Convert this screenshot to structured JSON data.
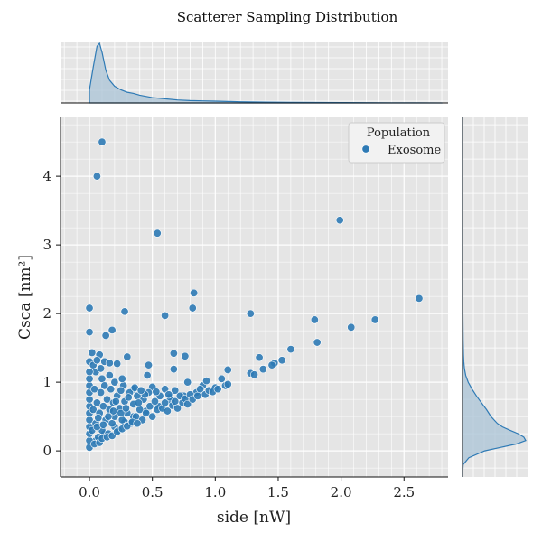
{
  "chart_data": {
    "type": "scatter",
    "title": "Scatterer Sampling Distribution",
    "xlabel": "side [nW]",
    "ylabel": "Csca [nm²]",
    "xlim": [
      -0.23,
      2.85
    ],
    "ylim": [
      -0.38,
      4.87
    ],
    "x_ticks": [
      0.0,
      0.5,
      1.0,
      1.5,
      2.0,
      2.5
    ],
    "x_tick_labels": [
      "0.0",
      "0.5",
      "1.0",
      "1.5",
      "2.0",
      "2.5"
    ],
    "y_ticks": [
      0,
      1,
      2,
      3,
      4
    ],
    "y_tick_labels": [
      "0",
      "1",
      "2",
      "3",
      "4"
    ],
    "grid": true,
    "legend": {
      "title": "Population",
      "placement": "top-right",
      "entries": [
        "Exosome"
      ]
    },
    "colors": {
      "series": "#2e7ab5",
      "background": "#e5e5e5",
      "grid": "#ffffff",
      "kde_fill": "#a9c3d6"
    },
    "series": [
      {
        "name": "Exosome",
        "points": [
          [
            0.1,
            4.5
          ],
          [
            0.06,
            4.0
          ],
          [
            0.54,
            3.17
          ],
          [
            1.99,
            3.36
          ],
          [
            0.83,
            2.3
          ],
          [
            0.0,
            2.08
          ],
          [
            0.28,
            2.03
          ],
          [
            0.6,
            1.97
          ],
          [
            0.82,
            2.08
          ],
          [
            1.28,
            2.0
          ],
          [
            1.79,
            1.91
          ],
          [
            2.62,
            2.22
          ],
          [
            2.27,
            1.91
          ],
          [
            2.08,
            1.8
          ],
          [
            1.81,
            1.58
          ],
          [
            1.6,
            1.48
          ],
          [
            0.0,
            1.73
          ],
          [
            0.13,
            1.68
          ],
          [
            0.18,
            1.76
          ],
          [
            0.02,
            1.43
          ],
          [
            0.08,
            1.4
          ],
          [
            0.12,
            1.3
          ],
          [
            0.16,
            1.28
          ],
          [
            0.22,
            1.27
          ],
          [
            0.3,
            1.37
          ],
          [
            0.47,
            1.25
          ],
          [
            0.67,
            1.42
          ],
          [
            0.76,
            1.38
          ],
          [
            1.35,
            1.36
          ],
          [
            1.53,
            1.32
          ],
          [
            1.47,
            1.28
          ],
          [
            1.45,
            1.25
          ],
          [
            1.38,
            1.19
          ],
          [
            1.28,
            1.13
          ],
          [
            1.31,
            1.11
          ],
          [
            1.1,
            1.18
          ],
          [
            0.67,
            1.19
          ],
          [
            0.46,
            1.1
          ],
          [
            0.0,
            1.3
          ],
          [
            0.03,
            1.25
          ],
          [
            0.05,
            1.15
          ],
          [
            0.1,
            1.05
          ],
          [
            0.2,
            1.0
          ],
          [
            0.27,
            0.95
          ],
          [
            0.35,
            0.9
          ],
          [
            0.5,
            0.93
          ],
          [
            0.6,
            0.9
          ],
          [
            0.68,
            0.88
          ],
          [
            0.78,
            1.0
          ],
          [
            0.9,
            0.95
          ],
          [
            1.05,
            1.05
          ],
          [
            0.93,
            1.02
          ],
          [
            1.0,
            0.92
          ],
          [
            1.08,
            0.95
          ],
          [
            1.1,
            0.97
          ],
          [
            0.85,
            0.85
          ],
          [
            0.75,
            0.8
          ],
          [
            0.65,
            0.72
          ],
          [
            0.55,
            0.65
          ],
          [
            0.45,
            0.58
          ],
          [
            0.35,
            0.5
          ],
          [
            0.28,
            0.42
          ],
          [
            0.2,
            0.35
          ],
          [
            0.12,
            0.25
          ],
          [
            0.05,
            0.15
          ],
          [
            0.0,
            0.05
          ],
          [
            0.0,
            0.15
          ],
          [
            0.0,
            0.25
          ],
          [
            0.0,
            0.35
          ],
          [
            0.0,
            0.45
          ],
          [
            0.0,
            0.55
          ],
          [
            0.0,
            0.65
          ],
          [
            0.0,
            0.75
          ],
          [
            0.0,
            0.85
          ],
          [
            0.0,
            0.95
          ],
          [
            0.0,
            1.05
          ],
          [
            0.0,
            1.15
          ],
          [
            0.02,
            0.3
          ],
          [
            0.03,
            0.6
          ],
          [
            0.04,
            0.9
          ],
          [
            0.05,
            0.4
          ],
          [
            0.06,
            0.7
          ],
          [
            0.07,
            0.2
          ],
          [
            0.08,
            0.55
          ],
          [
            0.09,
            0.85
          ],
          [
            0.1,
            0.3
          ],
          [
            0.11,
            0.65
          ],
          [
            0.12,
            0.95
          ],
          [
            0.13,
            0.45
          ],
          [
            0.14,
            0.75
          ],
          [
            0.15,
            0.25
          ],
          [
            0.16,
            0.6
          ],
          [
            0.17,
            0.9
          ],
          [
            0.18,
            0.4
          ],
          [
            0.19,
            0.7
          ],
          [
            0.2,
            0.5
          ],
          [
            0.22,
            0.8
          ],
          [
            0.23,
            0.3
          ],
          [
            0.24,
            0.62
          ],
          [
            0.25,
            0.88
          ],
          [
            0.26,
            0.45
          ],
          [
            0.28,
            0.72
          ],
          [
            0.3,
            0.55
          ],
          [
            0.32,
            0.85
          ],
          [
            0.33,
            0.4
          ],
          [
            0.35,
            0.68
          ],
          [
            0.37,
            0.5
          ],
          [
            0.38,
            0.8
          ],
          [
            0.4,
            0.6
          ],
          [
            0.42,
            0.45
          ],
          [
            0.43,
            0.75
          ],
          [
            0.45,
            0.55
          ],
          [
            0.47,
            0.85
          ],
          [
            0.48,
            0.65
          ],
          [
            0.5,
            0.5
          ],
          [
            0.52,
            0.72
          ],
          [
            0.54,
            0.6
          ],
          [
            0.56,
            0.8
          ],
          [
            0.58,
            0.62
          ],
          [
            0.6,
            0.7
          ],
          [
            0.62,
            0.58
          ],
          [
            0.64,
            0.78
          ],
          [
            0.66,
            0.66
          ],
          [
            0.68,
            0.72
          ],
          [
            0.7,
            0.62
          ],
          [
            0.72,
            0.8
          ],
          [
            0.74,
            0.7
          ],
          [
            0.76,
            0.76
          ],
          [
            0.78,
            0.68
          ],
          [
            0.8,
            0.82
          ],
          [
            0.82,
            0.75
          ],
          [
            0.86,
            0.8
          ],
          [
            0.88,
            0.9
          ],
          [
            0.92,
            0.82
          ],
          [
            0.95,
            0.88
          ],
          [
            0.98,
            0.86
          ],
          [
            1.02,
            0.9
          ],
          [
            0.04,
            0.1
          ],
          [
            0.06,
            0.35
          ],
          [
            0.08,
            0.12
          ],
          [
            0.1,
            0.18
          ],
          [
            0.14,
            0.2
          ],
          [
            0.18,
            0.22
          ],
          [
            0.22,
            0.28
          ],
          [
            0.26,
            0.32
          ],
          [
            0.3,
            0.36
          ],
          [
            0.34,
            0.42
          ],
          [
            0.38,
            0.4
          ],
          [
            0.15,
            0.5
          ],
          [
            0.25,
            0.55
          ],
          [
            0.07,
            0.48
          ],
          [
            0.11,
            0.38
          ],
          [
            0.19,
            0.58
          ],
          [
            0.29,
            0.62
          ],
          [
            0.39,
            0.7
          ],
          [
            0.44,
            0.82
          ],
          [
            0.36,
            0.92
          ],
          [
            0.26,
            1.05
          ],
          [
            0.16,
            1.1
          ],
          [
            0.09,
            1.2
          ],
          [
            0.06,
            1.32
          ],
          [
            0.21,
            0.72
          ],
          [
            0.31,
            0.78
          ],
          [
            0.41,
            0.88
          ],
          [
            0.53,
            0.86
          ],
          [
            0.63,
            0.82
          ]
        ]
      }
    ],
    "kde_x": [
      0.0,
      0.03,
      0.06,
      0.08,
      0.1,
      0.13,
      0.16,
      0.2,
      0.25,
      0.3,
      0.35,
      0.4,
      0.5,
      0.6,
      0.7,
      0.8,
      0.9,
      1.0,
      1.1,
      1.2,
      1.4,
      1.6,
      1.8,
      2.0,
      2.2,
      2.4,
      2.6,
      2.8
    ],
    "kde_x_density": [
      0.22,
      0.6,
      0.95,
      1.0,
      0.85,
      0.55,
      0.38,
      0.28,
      0.22,
      0.18,
      0.16,
      0.13,
      0.09,
      0.07,
      0.05,
      0.04,
      0.035,
      0.03,
      0.025,
      0.02,
      0.014,
      0.01,
      0.008,
      0.006,
      0.004,
      0.003,
      0.002,
      0.001
    ],
    "kde_y": [
      -0.38,
      -0.2,
      -0.1,
      0.0,
      0.05,
      0.1,
      0.15,
      0.2,
      0.25,
      0.3,
      0.35,
      0.4,
      0.5,
      0.6,
      0.7,
      0.8,
      0.9,
      1.0,
      1.1,
      1.2,
      1.3,
      1.4,
      1.6,
      1.8,
      2.0,
      2.5,
      3.0,
      4.0,
      4.87
    ],
    "kde_y_density": [
      0.0,
      0.01,
      0.1,
      0.35,
      0.6,
      0.85,
      1.0,
      0.97,
      0.88,
      0.75,
      0.63,
      0.55,
      0.45,
      0.38,
      0.3,
      0.22,
      0.15,
      0.09,
      0.05,
      0.03,
      0.02,
      0.015,
      0.01,
      0.008,
      0.006,
      0.003,
      0.002,
      0.001,
      0.0
    ]
  }
}
